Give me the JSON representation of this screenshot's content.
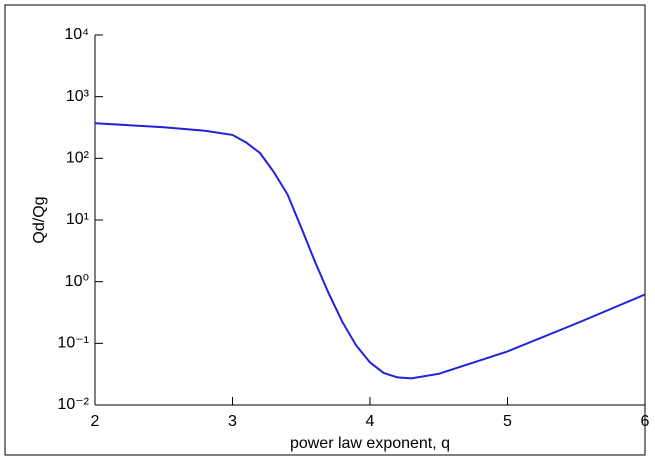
{
  "chart_data": {
    "type": "line",
    "x_label": "power law exponent, q",
    "y_label": "Qd/Qg",
    "x": [
      2,
      2.5,
      2.8,
      3.0,
      3.1,
      3.2,
      3.3,
      3.4,
      3.5,
      3.6,
      3.7,
      3.8,
      3.9,
      4.0,
      4.1,
      4.2,
      4.3,
      4.5,
      5.0,
      5.5,
      6.0
    ],
    "series": [
      {
        "name": "Qd/Qg",
        "color": "#2020e0",
        "values": [
          370,
          320,
          280,
          240,
          180,
          122,
          60,
          26,
          7.5,
          2.1,
          0.64,
          0.22,
          0.092,
          0.049,
          0.033,
          0.028,
          0.027,
          0.032,
          0.074,
          0.21,
          0.62
        ]
      }
    ],
    "xlim": [
      2,
      6
    ],
    "xticks": [
      2,
      3,
      4,
      5,
      6
    ],
    "ylim": [
      0.01,
      10000
    ],
    "log_y": true,
    "yticks": [
      {
        "value": 0.01,
        "label": "10⁻²"
      },
      {
        "value": 0.1,
        "label": "10⁻¹"
      },
      {
        "value": 1,
        "label": "10⁰"
      },
      {
        "value": 10,
        "label": "10¹"
      },
      {
        "value": 100,
        "label": "10²"
      },
      {
        "value": 1000,
        "label": "10³"
      },
      {
        "value": 10000,
        "label": "10⁴"
      }
    ]
  }
}
